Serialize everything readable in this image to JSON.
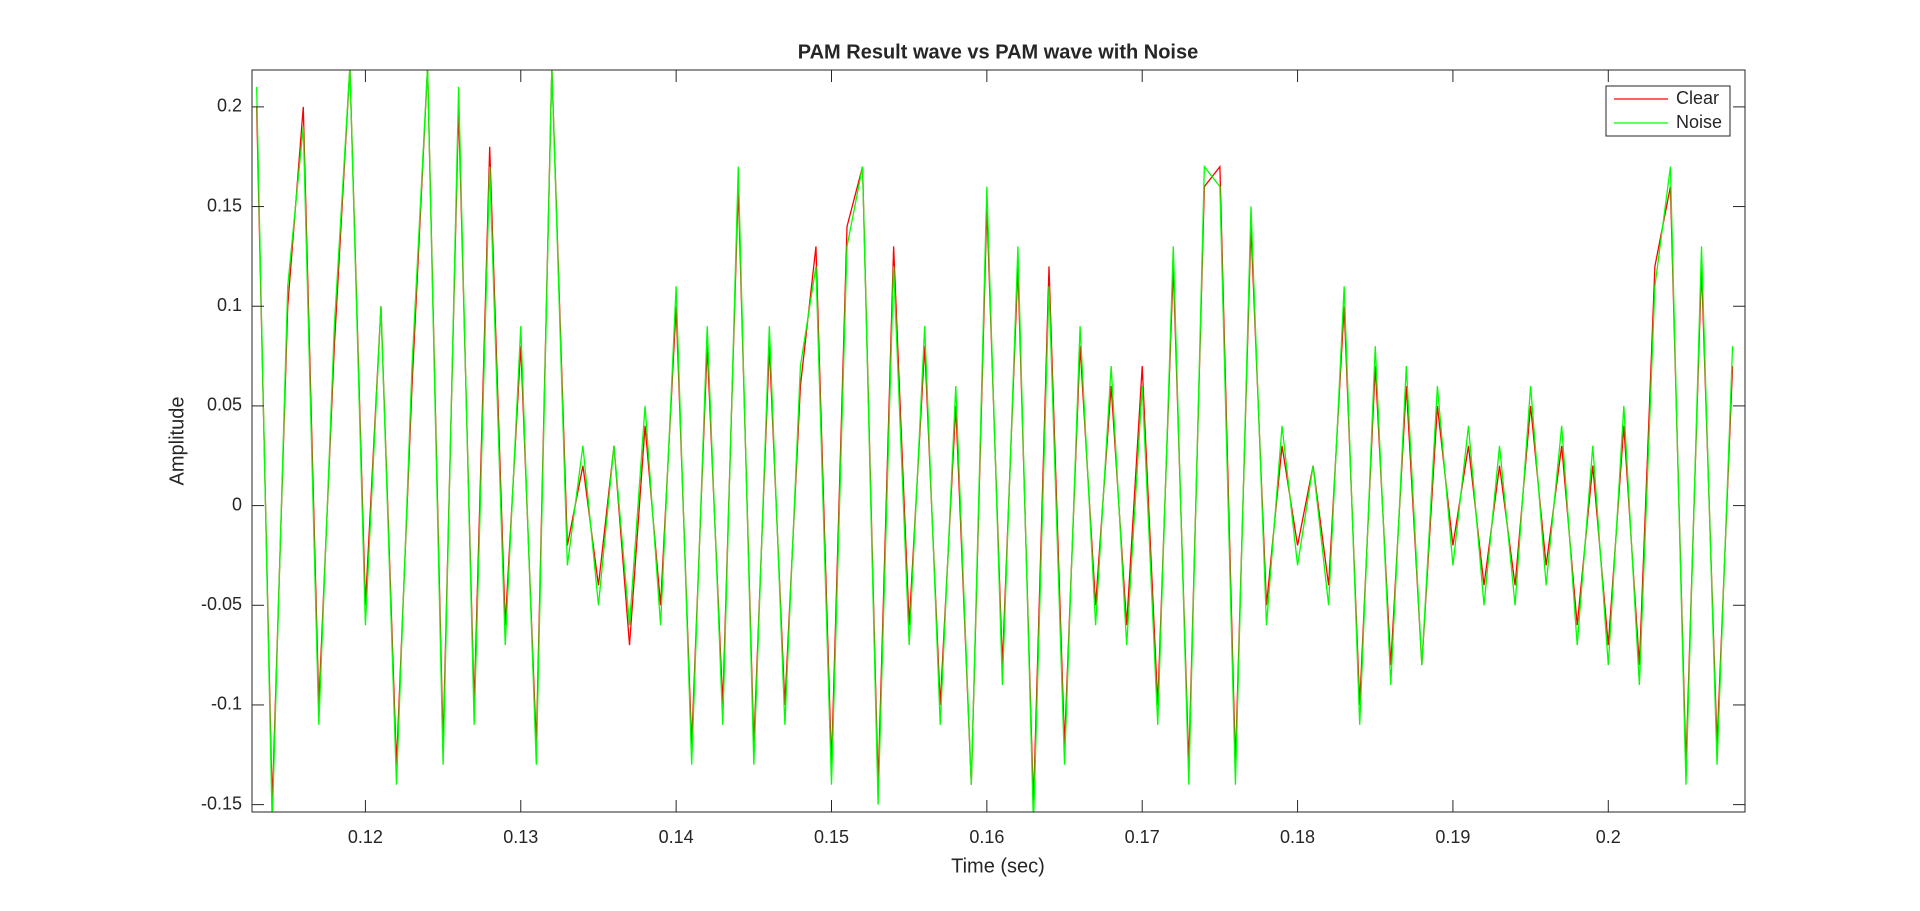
{
  "chart_data": {
    "type": "line",
    "title": "PAM Result wave vs PAM wave with Noise",
    "x_label": "Time (sec)",
    "y_label": "Amplitude",
    "x": [
      0.113,
      0.114,
      0.115,
      0.116,
      0.117,
      0.118,
      0.119,
      0.12,
      0.121,
      0.122,
      0.123,
      0.124,
      0.125,
      0.126,
      0.127,
      0.128,
      0.129,
      0.13,
      0.131,
      0.132,
      0.133,
      0.134,
      0.135,
      0.136,
      0.137,
      0.138,
      0.139,
      0.14,
      0.141,
      0.142,
      0.143,
      0.144,
      0.145,
      0.146,
      0.147,
      0.148,
      0.149,
      0.15,
      0.151,
      0.152,
      0.153,
      0.154,
      0.155,
      0.156,
      0.157,
      0.158,
      0.159,
      0.16,
      0.161,
      0.162,
      0.163,
      0.164,
      0.165,
      0.166,
      0.167,
      0.168,
      0.169,
      0.17,
      0.171,
      0.172,
      0.173,
      0.174,
      0.175,
      0.176,
      0.177,
      0.178,
      0.179,
      0.18,
      0.181,
      0.182,
      0.183,
      0.184,
      0.185,
      0.186,
      0.187,
      0.188,
      0.189,
      0.19,
      0.191,
      0.192,
      0.193,
      0.194,
      0.195,
      0.196,
      0.197,
      0.198,
      0.199,
      0.2,
      0.201,
      0.202,
      0.203,
      0.204,
      0.205,
      0.206,
      0.207,
      0.208
    ],
    "series": [
      {
        "name": "Clear",
        "color": "#ff0000",
        "values": [
          0.2,
          -0.15,
          0.1,
          0.2,
          -0.1,
          0.08,
          0.22,
          -0.05,
          0.1,
          -0.13,
          0.06,
          0.22,
          -0.12,
          0.2,
          -0.1,
          0.18,
          -0.06,
          0.08,
          -0.12,
          0.22,
          -0.02,
          0.02,
          -0.04,
          0.03,
          -0.07,
          0.04,
          -0.05,
          0.1,
          -0.12,
          0.08,
          -0.1,
          0.16,
          -0.12,
          0.08,
          -0.1,
          0.06,
          0.13,
          -0.13,
          0.14,
          0.17,
          -0.14,
          0.13,
          -0.06,
          0.08,
          -0.1,
          0.05,
          -0.14,
          0.15,
          -0.08,
          0.12,
          -0.15,
          0.12,
          -0.12,
          0.08,
          -0.05,
          0.06,
          -0.06,
          0.07,
          -0.1,
          0.12,
          -0.13,
          0.16,
          0.17,
          -0.13,
          0.14,
          -0.05,
          0.03,
          -0.02,
          0.02,
          -0.04,
          0.1,
          -0.1,
          0.07,
          -0.08,
          0.06,
          -0.08,
          0.05,
          -0.02,
          0.03,
          -0.04,
          0.02,
          -0.04,
          0.05,
          -0.03,
          0.03,
          -0.06,
          0.02,
          -0.07,
          0.04,
          -0.08,
          0.12,
          0.16,
          -0.13,
          0.12,
          -0.12,
          0.07
        ]
      },
      {
        "name": "Noise",
        "color": "#00ff00",
        "values": [
          0.21,
          -0.16,
          0.11,
          0.19,
          -0.11,
          0.09,
          0.22,
          -0.06,
          0.1,
          -0.14,
          0.07,
          0.22,
          -0.13,
          0.21,
          -0.11,
          0.17,
          -0.07,
          0.09,
          -0.13,
          0.22,
          -0.03,
          0.03,
          -0.05,
          0.03,
          -0.06,
          0.05,
          -0.06,
          0.11,
          -0.13,
          0.09,
          -0.11,
          0.17,
          -0.13,
          0.09,
          -0.11,
          0.07,
          0.12,
          -0.14,
          0.13,
          0.17,
          -0.15,
          0.12,
          -0.07,
          0.09,
          -0.11,
          0.06,
          -0.14,
          0.16,
          -0.09,
          0.13,
          -0.16,
          0.11,
          -0.13,
          0.09,
          -0.06,
          0.07,
          -0.07,
          0.06,
          -0.11,
          0.13,
          -0.14,
          0.17,
          0.16,
          -0.14,
          0.15,
          -0.06,
          0.04,
          -0.03,
          0.02,
          -0.05,
          0.11,
          -0.11,
          0.08,
          -0.09,
          0.07,
          -0.08,
          0.06,
          -0.03,
          0.04,
          -0.05,
          0.03,
          -0.05,
          0.06,
          -0.04,
          0.04,
          -0.07,
          0.03,
          -0.08,
          0.05,
          -0.09,
          0.11,
          0.17,
          -0.14,
          0.13,
          -0.13,
          0.08
        ]
      }
    ],
    "xlim": [
      0.1127,
      0.2088
    ],
    "xticks": [
      0.12,
      0.13,
      0.14,
      0.15,
      0.16,
      0.17,
      0.18,
      0.19,
      0.2
    ],
    "ylim": [
      -0.1537,
      0.2185
    ],
    "yticks": [
      -0.15,
      -0.1,
      -0.05,
      0,
      0.05,
      0.1,
      0.15,
      0.2
    ],
    "grid": false,
    "legend": "top-right"
  }
}
